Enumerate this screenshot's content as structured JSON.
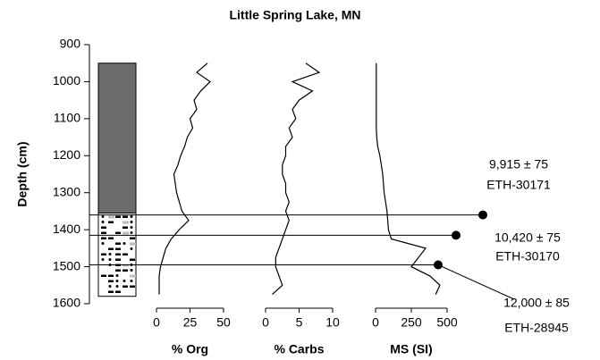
{
  "chart_data": {
    "type": "depth-profile",
    "title": "Little Spring Lake, MN",
    "ylabel": "Depth (cm)",
    "ylim": [
      900,
      1600
    ],
    "yticks": [
      900,
      1000,
      1100,
      1200,
      1300,
      1400,
      1500,
      1600
    ],
    "y_reversed": true,
    "color": "#000000",
    "depth": [
      950,
      975,
      1000,
      1025,
      1050,
      1075,
      1100,
      1125,
      1150,
      1175,
      1200,
      1225,
      1250,
      1275,
      1300,
      1325,
      1350,
      1375,
      1400,
      1425,
      1450,
      1475,
      1500,
      1525,
      1550,
      1575
    ],
    "panels": [
      {
        "xlabel": "% Org",
        "xlim": [
          0,
          50
        ],
        "xticks": [
          0,
          25,
          50
        ],
        "values": [
          38,
          30,
          40,
          33,
          28,
          30,
          25,
          27,
          23,
          21,
          18,
          16,
          13,
          14,
          15,
          17,
          19,
          24,
          17,
          11,
          7,
          5,
          3,
          2,
          2,
          2
        ]
      },
      {
        "xlabel": "% Carbs",
        "xlim": [
          0,
          10
        ],
        "xticks": [
          0,
          5,
          10
        ],
        "values": [
          6,
          8,
          4,
          7,
          5,
          4,
          4.5,
          3.5,
          4,
          3,
          3,
          2.5,
          2.5,
          3,
          3,
          3.5,
          3,
          3.5,
          3,
          2.5,
          2,
          1.5,
          1.5,
          2,
          2.5,
          1
        ]
      },
      {
        "xlabel": "MS (SI)",
        "xlim": [
          0,
          500
        ],
        "xticks": [
          0,
          250,
          500
        ],
        "values": [
          5,
          5,
          5,
          5,
          5,
          5,
          5,
          5,
          8,
          15,
          30,
          40,
          50,
          55,
          60,
          70,
          80,
          85,
          90,
          110,
          350,
          300,
          250,
          380,
          450,
          420
        ]
      }
    ],
    "lithology": [
      {
        "top": 950,
        "bottom": 1355,
        "pattern": "solid",
        "color": "#6b6b6b"
      },
      {
        "top": 1355,
        "bottom": 1580,
        "pattern": "laminated",
        "color": "#000000"
      }
    ],
    "dates": [
      {
        "depth": 1360,
        "age": "9,915 ± 75",
        "lab_id": "ETH-30171"
      },
      {
        "depth": 1415,
        "age": "10,420 ± 75",
        "lab_id": "ETH-30170"
      },
      {
        "depth": 1495,
        "age": "12,000 ± 85",
        "lab_id": "ETH-28945"
      }
    ]
  }
}
